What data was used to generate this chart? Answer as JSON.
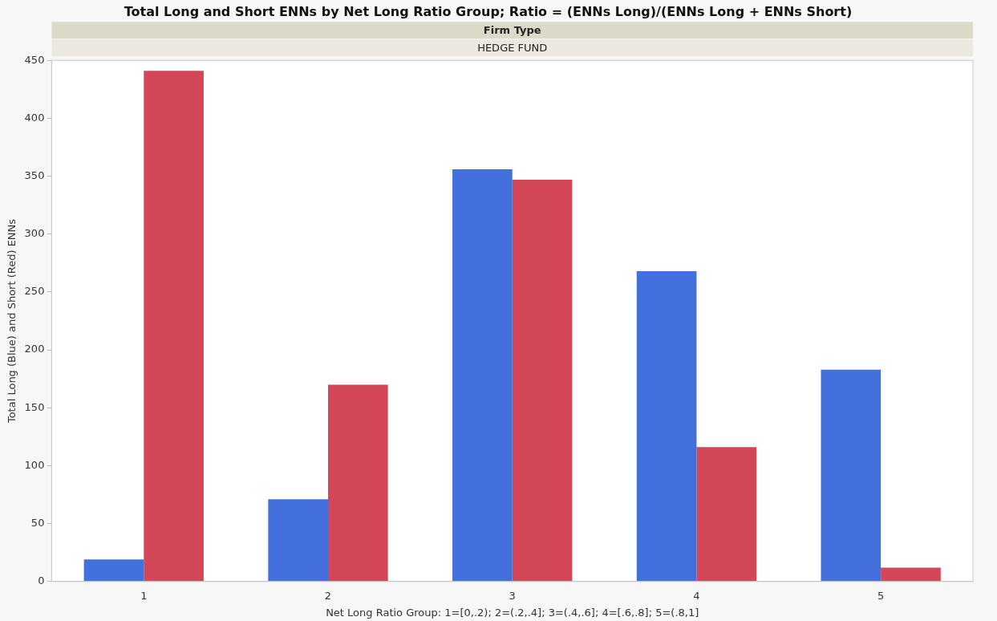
{
  "chart_data": {
    "type": "bar",
    "title": "Total Long and Short ENNs by Net Long Ratio Group; Ratio = (ENNs Long)/(ENNs Long + ENNs Short)",
    "annotations": [
      "Firm Type",
      "HEDGE FUND"
    ],
    "xlabel": "Net Long Ratio Group: 1=[0,.2); 2=(.2,.4]; 3=(.4,.6]; 4=[.6,.8]; 5=(.8,1]",
    "ylabel": "Total Long (Blue) and Short (Red) ENNs",
    "categories": [
      "1",
      "2",
      "3",
      "4",
      "5"
    ],
    "series": [
      {
        "color": "#4370dc",
        "values": [
          19,
          71,
          356,
          268,
          183
        ]
      },
      {
        "color": "#d44758",
        "values": [
          441,
          170,
          347,
          116,
          12
        ]
      }
    ],
    "ylim": [
      0,
      450
    ],
    "yticks": [
      0,
      50,
      100,
      150,
      200,
      250,
      300,
      350,
      400,
      450
    ],
    "grid": false,
    "legend": false
  }
}
